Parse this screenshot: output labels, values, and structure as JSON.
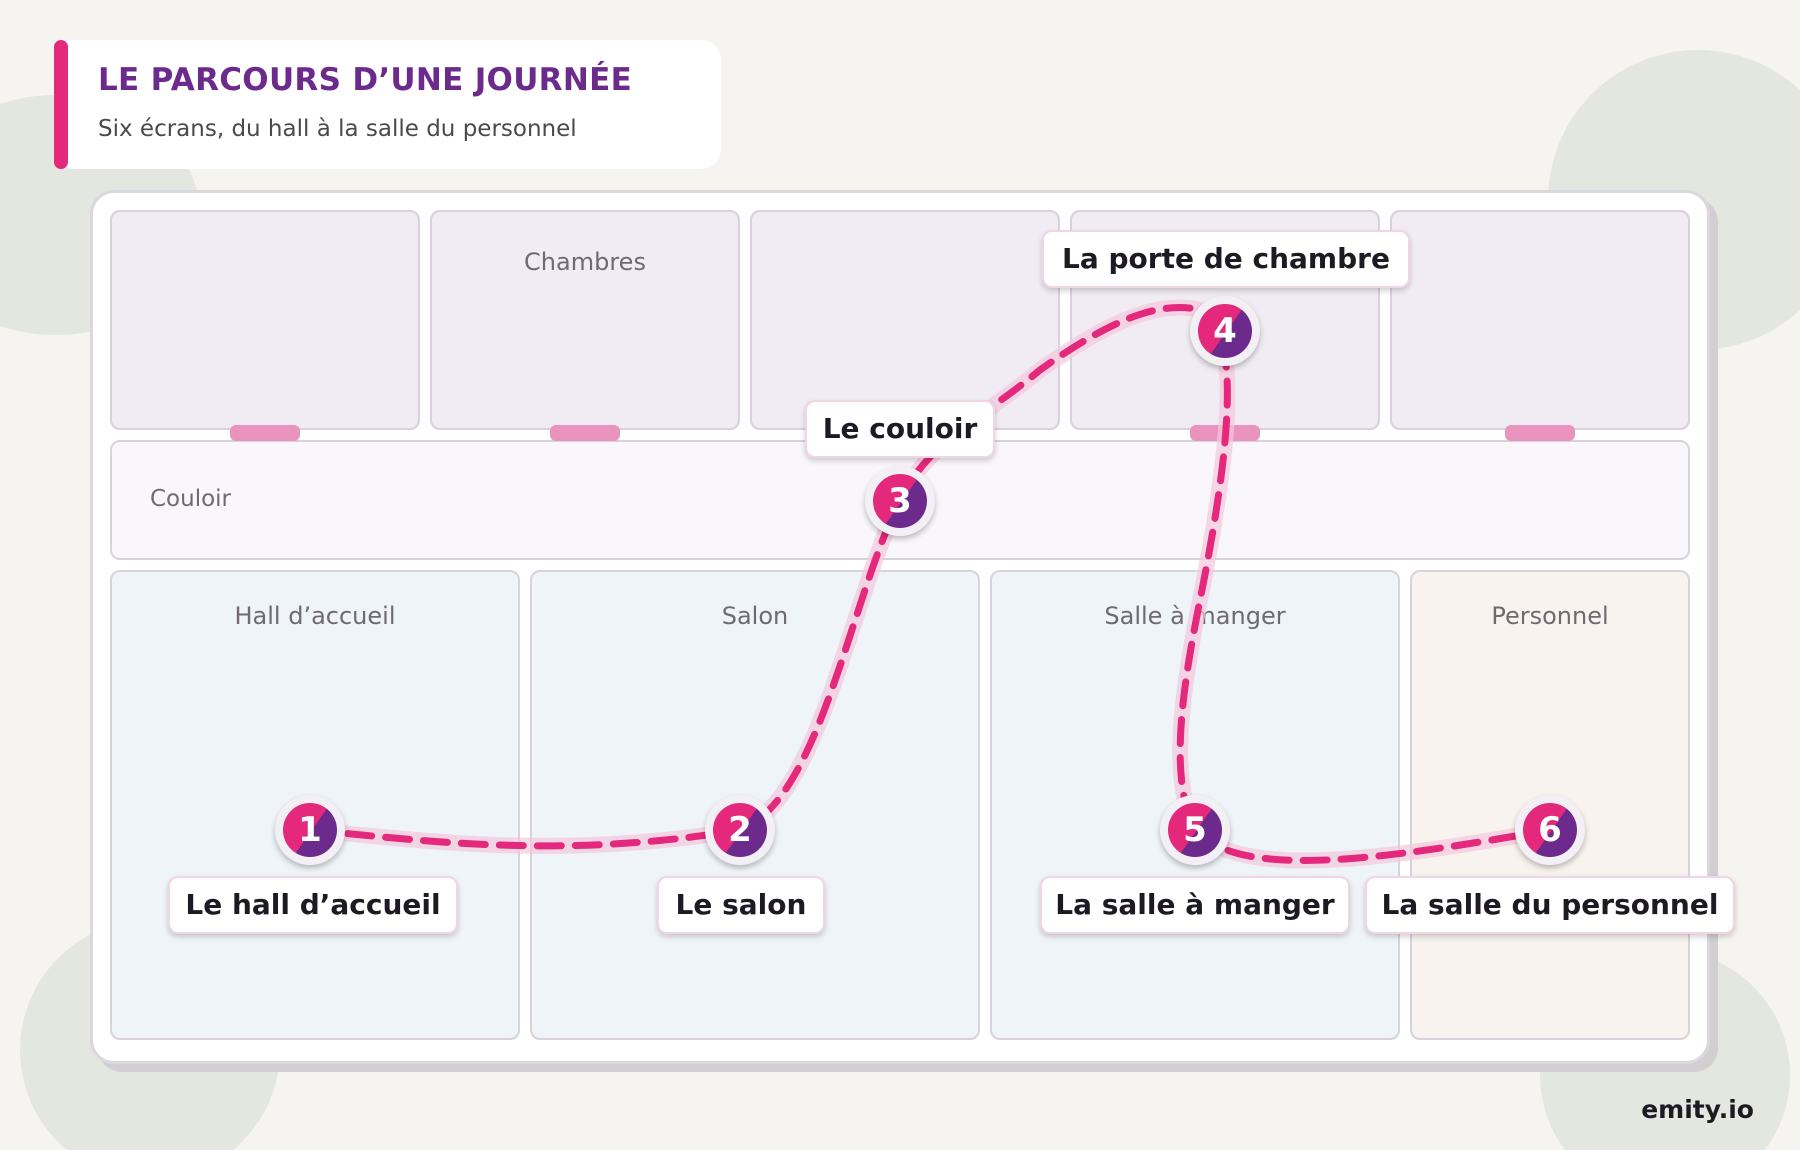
{
  "header": {
    "title": "LE PARCOURS D’UNE JOURNÉE",
    "subtitle": "Six écrans, du hall à la salle du personnel"
  },
  "rooms": {
    "bedroom_label": "Chambres",
    "corridor_label": "Couloir",
    "hall_label": "Hall d’accueil",
    "salon_label": "Salon",
    "dining_label": "Salle à manger",
    "staff_label": "Personnel"
  },
  "steps": [
    {
      "number": "1",
      "label": "Le hall d’accueil"
    },
    {
      "number": "2",
      "label": "Le salon"
    },
    {
      "number": "3",
      "label": "Le couloir"
    },
    {
      "number": "4",
      "label": "La porte de chambre"
    },
    {
      "number": "5",
      "label": "La salle à manger"
    },
    {
      "number": "6",
      "label": "La salle du personnel"
    }
  ],
  "brand": "emity.io",
  "colors": {
    "accent_pink": "#e4287c",
    "accent_purple": "#6b2a8c",
    "door": "#eb93bf",
    "background": "#f6f4f0"
  }
}
